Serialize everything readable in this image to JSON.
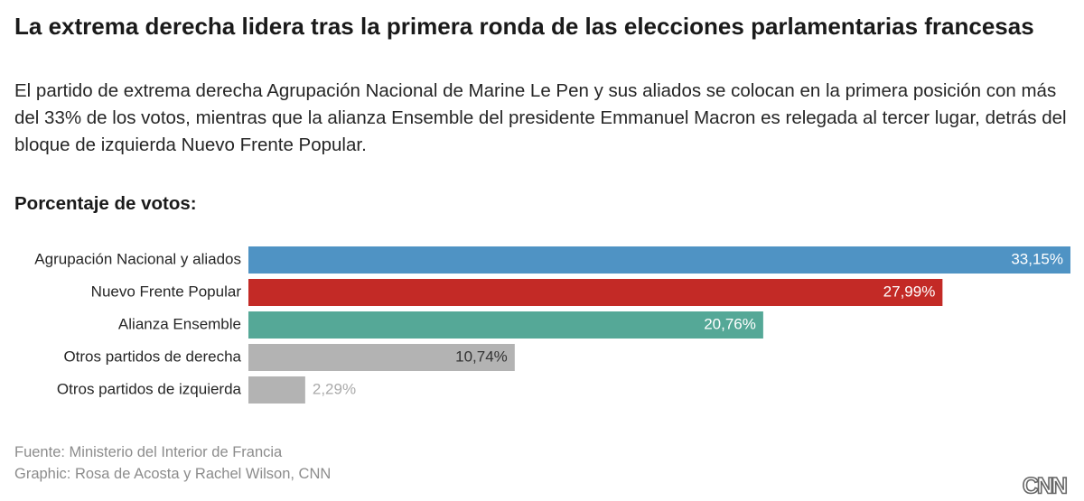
{
  "chart_data": {
    "type": "bar",
    "orientation": "horizontal",
    "title": "La extrema derecha lidera tras la primera ronda de las elecciones parlamentarias francesas",
    "subtitle": "El partido de extrema derecha Agrupación Nacional de Marine Le Pen y sus aliados se colocan en la primera posición con más del 33% de los votos, mientras que la alianza Ensemble del presidente Emmanuel Macron es relegada al tercer lugar, detrás del bloque de izquierda Nuevo Frente Popular.",
    "value_axis_title": "Porcentaje de votos:",
    "categories": [
      "Agrupación Nacional y aliados",
      "Nuevo Frente Popular",
      "Alianza Ensemble",
      "Otros partidos de derecha",
      "Otros partidos de izquierda"
    ],
    "values": [
      33.15,
      27.99,
      20.76,
      10.74,
      2.29
    ],
    "value_labels": [
      "33,15%",
      "27,99%",
      "20,76%",
      "10,74%",
      "2,29%"
    ],
    "colors": [
      "#4f93c4",
      "#c32a26",
      "#55a897",
      "#b3b3b3",
      "#b3b3b3"
    ],
    "source": "Fuente: Ministerio del Interior de Francia",
    "credit": "Graphic: Rosa de Acosta y Rachel Wilson, CNN",
    "logo": "CNN"
  }
}
